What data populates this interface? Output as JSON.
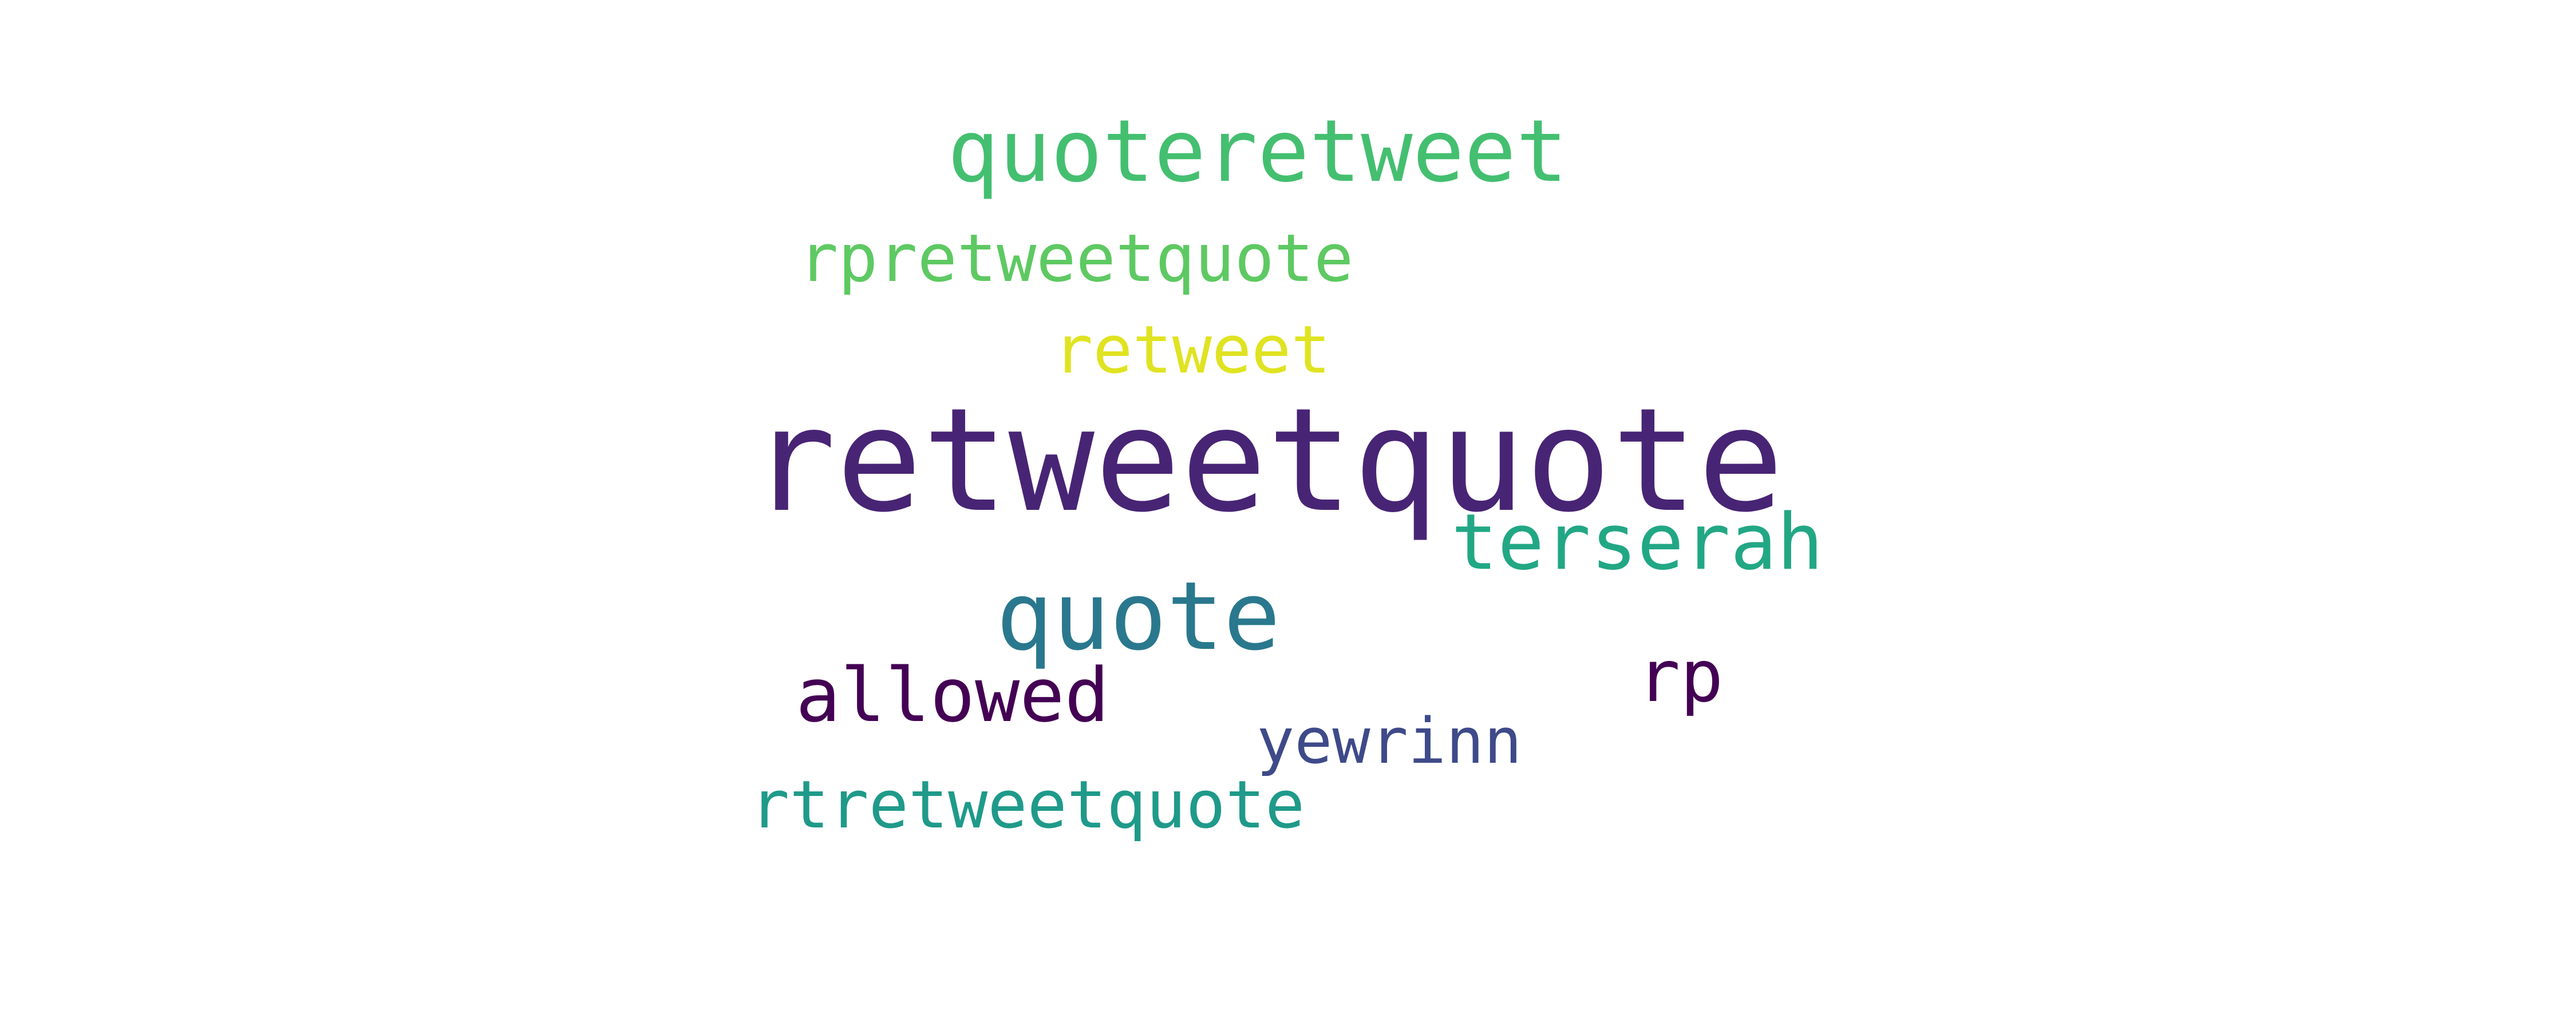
{
  "words": [
    {
      "text": "retweetquote",
      "color": "#482475"
    },
    {
      "text": "quoteretweet",
      "color": "#44bf70"
    },
    {
      "text": "rpretweetquote",
      "color": "#5ec962"
    },
    {
      "text": "retweet",
      "color": "#e0e321"
    },
    {
      "text": "terserah",
      "color": "#22a785"
    },
    {
      "text": "quote",
      "color": "#2a788e"
    },
    {
      "text": "allowed",
      "color": "#440154"
    },
    {
      "text": "rp",
      "color": "#440154"
    },
    {
      "text": "yewrinn",
      "color": "#3e4a89"
    },
    {
      "text": "rtretweetquote",
      "color": "#1f9a8a"
    }
  ]
}
